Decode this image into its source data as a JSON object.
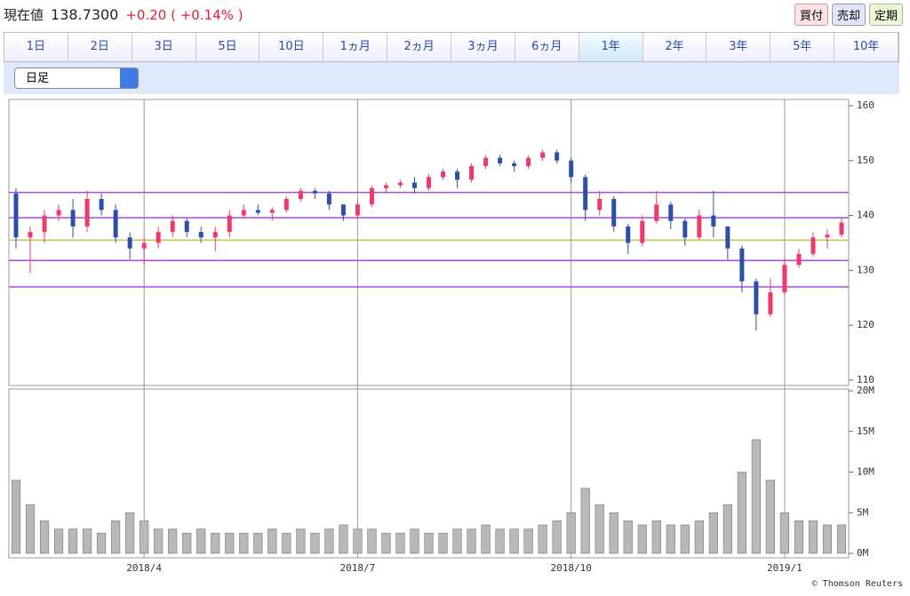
{
  "header": {
    "label": "現在値",
    "price": "138.7300",
    "change": "+0.20",
    "change_pct": "( +0.14% )",
    "buttons": [
      "買付",
      "売却",
      "定期"
    ]
  },
  "tabs": {
    "items": [
      "1日",
      "2日",
      "3日",
      "5日",
      "10日",
      "1ヵ月",
      "2ヵ月",
      "3ヵ月",
      "6ヵ月",
      "1年",
      "2年",
      "3年",
      "5年",
      "10年"
    ],
    "active": 9
  },
  "dropdown": "日足",
  "chart_data": [
    {
      "type": "candlestick",
      "up_color": "#f0386a",
      "down_color": "#2d4fa8",
      "open": [
        144,
        136,
        137,
        140,
        141,
        138,
        143,
        141,
        136,
        134,
        135,
        137,
        139,
        137,
        136,
        137,
        140,
        141,
        140.5,
        141,
        143,
        144.5,
        144,
        142,
        140,
        142,
        145,
        145.5,
        146,
        145,
        147,
        148,
        146.5,
        149,
        150.5,
        149.5,
        149,
        150.5,
        151.5,
        150,
        147,
        141,
        143,
        138,
        135,
        139,
        142,
        139,
        136,
        140,
        138,
        134,
        128,
        122,
        126,
        131,
        133,
        136,
        136.5
      ],
      "high": [
        145,
        138,
        141,
        142,
        143,
        144.5,
        144,
        142,
        137,
        136,
        138,
        140,
        139.5,
        138,
        138,
        141,
        142,
        142,
        141.5,
        143.5,
        145,
        145,
        144.5,
        142,
        142.5,
        145.5,
        146,
        146.5,
        147,
        147.5,
        148.5,
        148.5,
        149.5,
        151,
        151,
        150,
        151,
        152,
        152,
        150.5,
        147.5,
        144.5,
        143.5,
        138.5,
        140,
        144.5,
        142.5,
        139.5,
        141,
        144.5,
        138,
        134.5,
        128.5,
        128.5,
        132.5,
        134,
        137,
        137.5,
        139.5
      ],
      "low": [
        134,
        129.5,
        135,
        139,
        136,
        137,
        140,
        135,
        132,
        131,
        134,
        136,
        136,
        135,
        133.5,
        136,
        139.5,
        140,
        139,
        140.5,
        142.5,
        143,
        141,
        139,
        139.5,
        141.5,
        144,
        145,
        144,
        144.5,
        146.5,
        145,
        146,
        148.5,
        149,
        148,
        148.5,
        150,
        149.5,
        146,
        139,
        140,
        137,
        133,
        134.5,
        138.5,
        137.5,
        134.5,
        135.5,
        136,
        132,
        126,
        119,
        121.5,
        125.5,
        130.5,
        132.5,
        134,
        136
      ],
      "close": [
        136,
        137,
        140,
        141,
        138,
        143,
        141,
        136,
        134,
        135,
        137,
        139,
        137,
        136,
        137,
        140,
        141,
        140.5,
        141,
        143,
        144.5,
        144,
        142,
        140,
        142,
        145,
        145.5,
        146,
        145,
        147,
        148,
        146.5,
        149,
        150.5,
        149.5,
        149,
        150.5,
        151.5,
        150,
        147,
        141,
        143,
        138,
        135,
        139,
        142,
        139,
        136,
        140,
        138,
        134,
        128,
        122,
        126,
        131,
        133,
        136,
        136.5,
        138.7
      ],
      "ylim": [
        110,
        160
      ],
      "yticks": [
        110,
        120,
        130,
        140,
        150,
        160
      ],
      "hlines": [
        {
          "value": 144.2,
          "color": "#a94be0"
        },
        {
          "value": 139.6,
          "color": "#a94be0"
        },
        {
          "value": 135.5,
          "color": "#b5c94a"
        },
        {
          "value": 131.8,
          "color": "#a94be0"
        },
        {
          "value": 127,
          "color": "#a94be0"
        }
      ]
    },
    {
      "type": "bar",
      "color": "#b8b8b8",
      "categories": [
        null,
        null,
        null,
        null,
        null,
        null,
        null,
        null,
        null,
        "2018/4",
        null,
        null,
        null,
        null,
        null,
        null,
        null,
        null,
        null,
        null,
        null,
        null,
        null,
        null,
        "2018/7",
        null,
        null,
        null,
        null,
        null,
        null,
        null,
        null,
        null,
        null,
        null,
        null,
        null,
        null,
        "2018/10",
        null,
        null,
        null,
        null,
        null,
        null,
        null,
        null,
        null,
        null,
        null,
        null,
        null,
        null,
        "2019/1",
        null,
        null,
        null,
        null
      ],
      "values": [
        9,
        6,
        4,
        3,
        3,
        3,
        2.5,
        4,
        5,
        4,
        3,
        3,
        2.5,
        3,
        2.5,
        2.5,
        2.5,
        2.5,
        3,
        2.5,
        3,
        2.5,
        3,
        3.5,
        3,
        3,
        2.5,
        2.5,
        3,
        2.5,
        2.5,
        3,
        3,
        3.5,
        3,
        3,
        3,
        3.5,
        4,
        5,
        8,
        6,
        5,
        4,
        3.5,
        4,
        3.5,
        3.5,
        4,
        5,
        6,
        10,
        14,
        9,
        5,
        4,
        4,
        3.5,
        3.5
      ],
      "ylim": [
        0,
        20
      ],
      "yticks": [
        {
          "value": 0,
          "label": "0M"
        },
        {
          "value": 5,
          "label": "5M"
        },
        {
          "value": 10,
          "label": "10M"
        },
        {
          "value": 15,
          "label": "15M"
        },
        {
          "value": 20,
          "label": "20M"
        }
      ]
    }
  ],
  "footer": "© Thomson Reuters"
}
